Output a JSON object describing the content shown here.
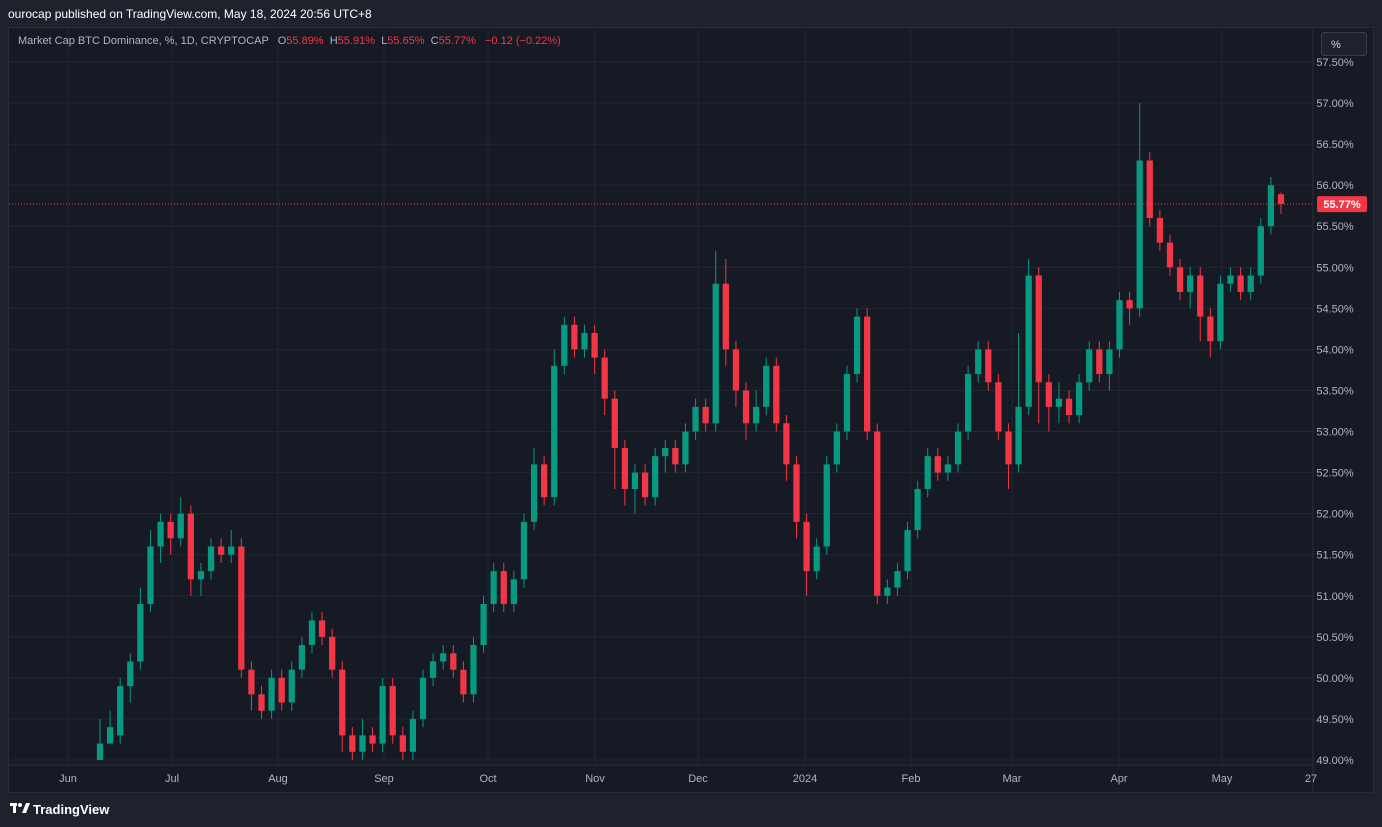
{
  "header": {
    "published_text": "ourocap published on TradingView.com, May 18, 2024 20:56 UTC+8"
  },
  "legend": {
    "symbol": "Market Cap BTC Dominance, %, 1D, CRYPTOCAP",
    "o_label": "O",
    "o_value": "55.89%",
    "h_label": "H",
    "h_value": "55.91%",
    "l_label": "L",
    "l_value": "55.65%",
    "c_label": "C",
    "c_value": "55.77%",
    "change": "−0.12 (−0.22%)"
  },
  "unit_button": "%",
  "footer": {
    "brand": "TradingView"
  },
  "colors": {
    "up": "#089981",
    "down": "#f23645",
    "background": "#161a25",
    "grid": "#232733"
  },
  "chart_data": {
    "type": "candlestick",
    "ylim": [
      49.0,
      57.5
    ],
    "y_ticks": [
      "49.00%",
      "49.50%",
      "50.00%",
      "50.50%",
      "51.00%",
      "51.50%",
      "52.00%",
      "52.50%",
      "53.00%",
      "53.50%",
      "54.00%",
      "54.50%",
      "55.00%",
      "55.50%",
      "56.00%",
      "56.50%",
      "57.00%",
      "57.50%"
    ],
    "x_ticks": [
      "Jun",
      "Jul",
      "Aug",
      "Sep",
      "Oct",
      "Nov",
      "Dec",
      "2024",
      "Feb",
      "Mar",
      "Apr",
      "May",
      "27"
    ],
    "last_value": 55.77,
    "last_label": "55.77%",
    "series": [
      {
        "name": "Market Cap BTC Dominance",
        "points": [
          [
            49.0,
            49.2,
            49.5,
            49.1
          ],
          [
            49.2,
            49.4,
            49.6,
            49.3
          ],
          [
            49.3,
            49.9,
            50.0,
            49.2
          ],
          [
            49.9,
            50.2,
            50.3,
            49.7
          ],
          [
            50.2,
            50.9,
            51.1,
            50.1
          ],
          [
            50.9,
            51.6,
            51.8,
            50.8
          ],
          [
            51.6,
            51.9,
            52.0,
            51.4
          ],
          [
            51.9,
            51.7,
            52.0,
            51.5
          ],
          [
            51.7,
            52.0,
            52.2,
            51.6
          ],
          [
            52.0,
            51.2,
            52.1,
            51.0
          ],
          [
            51.2,
            51.3,
            51.4,
            51.0
          ],
          [
            51.3,
            51.6,
            51.7,
            51.2
          ],
          [
            51.6,
            51.5,
            51.7,
            51.4
          ],
          [
            51.5,
            51.6,
            51.8,
            51.4
          ],
          [
            51.6,
            50.1,
            51.7,
            50.0
          ],
          [
            50.1,
            49.8,
            50.2,
            49.6
          ],
          [
            49.8,
            49.6,
            49.9,
            49.5
          ],
          [
            49.6,
            50.0,
            50.1,
            49.5
          ],
          [
            50.0,
            49.7,
            50.1,
            49.6
          ],
          [
            49.7,
            50.1,
            50.2,
            49.6
          ],
          [
            50.1,
            50.4,
            50.5,
            50.0
          ],
          [
            50.4,
            50.7,
            50.8,
            50.3
          ],
          [
            50.7,
            50.5,
            50.8,
            50.4
          ],
          [
            50.5,
            50.1,
            50.6,
            50.0
          ],
          [
            50.1,
            49.3,
            50.2,
            49.1
          ],
          [
            49.3,
            49.1,
            49.4,
            49.0
          ],
          [
            49.1,
            49.3,
            49.5,
            49.0
          ],
          [
            49.3,
            49.2,
            49.4,
            49.1
          ],
          [
            49.2,
            49.9,
            50.0,
            49.1
          ],
          [
            49.9,
            49.3,
            50.0,
            49.2
          ],
          [
            49.3,
            49.1,
            49.4,
            49.0
          ],
          [
            49.1,
            49.5,
            49.6,
            49.0
          ],
          [
            49.5,
            50.0,
            50.1,
            49.4
          ],
          [
            50.0,
            50.2,
            50.3,
            49.9
          ],
          [
            50.2,
            50.3,
            50.4,
            50.1
          ],
          [
            50.3,
            50.1,
            50.4,
            50.0
          ],
          [
            50.1,
            49.8,
            50.2,
            49.7
          ],
          [
            49.8,
            50.4,
            50.5,
            49.7
          ],
          [
            50.4,
            50.9,
            51.0,
            50.3
          ],
          [
            50.9,
            51.3,
            51.4,
            50.8
          ],
          [
            51.3,
            50.9,
            51.4,
            50.8
          ],
          [
            50.9,
            51.2,
            51.3,
            50.8
          ],
          [
            51.2,
            51.9,
            52.0,
            51.1
          ],
          [
            51.9,
            52.6,
            52.8,
            51.8
          ],
          [
            52.6,
            52.2,
            52.7,
            52.1
          ],
          [
            52.2,
            53.8,
            54.0,
            52.1
          ],
          [
            53.8,
            54.3,
            54.4,
            53.7
          ],
          [
            54.3,
            54.0,
            54.4,
            53.9
          ],
          [
            54.0,
            54.2,
            54.3,
            53.9
          ],
          [
            54.2,
            53.9,
            54.3,
            53.7
          ],
          [
            53.9,
            53.4,
            54.0,
            53.2
          ],
          [
            53.4,
            52.8,
            53.5,
            52.3
          ],
          [
            52.8,
            52.3,
            52.9,
            52.1
          ],
          [
            52.3,
            52.5,
            52.6,
            52.0
          ],
          [
            52.5,
            52.2,
            52.6,
            52.1
          ],
          [
            52.2,
            52.7,
            52.8,
            52.1
          ],
          [
            52.7,
            52.8,
            52.9,
            52.5
          ],
          [
            52.8,
            52.6,
            52.9,
            52.5
          ],
          [
            52.6,
            53.0,
            53.1,
            52.5
          ],
          [
            53.0,
            53.3,
            53.4,
            52.9
          ],
          [
            53.3,
            53.1,
            53.4,
            53.0
          ],
          [
            53.1,
            54.8,
            55.2,
            53.0
          ],
          [
            54.8,
            54.0,
            55.1,
            53.8
          ],
          [
            54.0,
            53.5,
            54.1,
            53.3
          ],
          [
            53.5,
            53.1,
            53.6,
            52.9
          ],
          [
            53.1,
            53.3,
            53.5,
            53.0
          ],
          [
            53.3,
            53.8,
            53.9,
            53.2
          ],
          [
            53.8,
            53.1,
            53.9,
            53.0
          ],
          [
            53.1,
            52.6,
            53.2,
            52.4
          ],
          [
            52.6,
            51.9,
            52.7,
            51.7
          ],
          [
            51.9,
            51.3,
            52.0,
            51.0
          ],
          [
            51.3,
            51.6,
            51.7,
            51.2
          ],
          [
            51.6,
            52.6,
            52.7,
            51.5
          ],
          [
            52.6,
            53.0,
            53.1,
            52.5
          ],
          [
            53.0,
            53.7,
            53.8,
            52.9
          ],
          [
            53.7,
            54.4,
            54.5,
            53.6
          ],
          [
            54.4,
            53.0,
            54.5,
            52.9
          ],
          [
            53.0,
            51.0,
            53.1,
            50.9
          ],
          [
            51.0,
            51.1,
            51.2,
            50.9
          ],
          [
            51.1,
            51.3,
            51.4,
            51.0
          ],
          [
            51.3,
            51.8,
            51.9,
            51.2
          ],
          [
            51.8,
            52.3,
            52.4,
            51.7
          ],
          [
            52.3,
            52.7,
            52.8,
            52.2
          ],
          [
            52.7,
            52.5,
            52.8,
            52.4
          ],
          [
            52.5,
            52.6,
            52.7,
            52.4
          ],
          [
            52.6,
            53.0,
            53.1,
            52.5
          ],
          [
            53.0,
            53.7,
            53.8,
            52.9
          ],
          [
            53.7,
            54.0,
            54.1,
            53.6
          ],
          [
            54.0,
            53.6,
            54.1,
            53.5
          ],
          [
            53.6,
            53.0,
            53.7,
            52.9
          ],
          [
            53.0,
            52.6,
            53.1,
            52.3
          ],
          [
            52.6,
            53.3,
            54.2,
            52.5
          ],
          [
            53.3,
            54.9,
            55.1,
            53.2
          ],
          [
            54.9,
            53.6,
            55.0,
            53.1
          ],
          [
            53.6,
            53.3,
            53.7,
            53.0
          ],
          [
            53.3,
            53.4,
            53.6,
            53.1
          ],
          [
            53.4,
            53.2,
            53.5,
            53.1
          ],
          [
            53.2,
            53.6,
            53.7,
            53.1
          ],
          [
            53.6,
            54.0,
            54.1,
            53.5
          ],
          [
            54.0,
            53.7,
            54.1,
            53.6
          ],
          [
            53.7,
            54.0,
            54.1,
            53.5
          ],
          [
            54.0,
            54.6,
            54.7,
            53.9
          ],
          [
            54.6,
            54.5,
            54.7,
            54.3
          ],
          [
            54.5,
            56.3,
            57.0,
            54.4
          ],
          [
            56.3,
            55.6,
            56.4,
            55.5
          ],
          [
            55.6,
            55.3,
            55.7,
            55.2
          ],
          [
            55.3,
            55.0,
            55.4,
            54.9
          ],
          [
            55.0,
            54.7,
            55.1,
            54.6
          ],
          [
            54.7,
            54.9,
            55.0,
            54.5
          ],
          [
            54.9,
            54.4,
            55.0,
            54.1
          ],
          [
            54.4,
            54.1,
            54.5,
            53.9
          ],
          [
            54.1,
            54.8,
            54.9,
            54.0
          ],
          [
            54.8,
            54.9,
            55.0,
            54.7
          ],
          [
            54.9,
            54.7,
            55.0,
            54.6
          ],
          [
            54.7,
            54.9,
            55.0,
            54.6
          ],
          [
            54.9,
            55.5,
            55.6,
            54.8
          ],
          [
            55.5,
            56.0,
            56.1,
            55.4
          ],
          [
            55.89,
            55.77,
            55.91,
            55.65
          ]
        ]
      }
    ]
  }
}
